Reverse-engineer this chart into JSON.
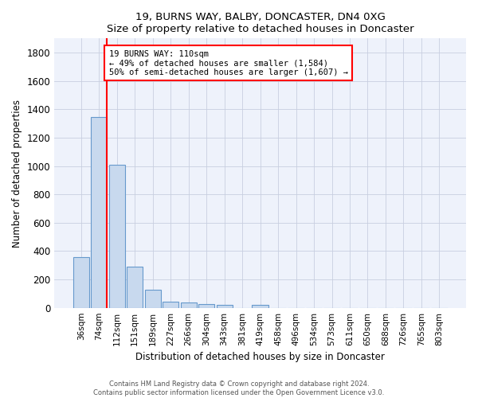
{
  "title": "19, BURNS WAY, BALBY, DONCASTER, DN4 0XG",
  "subtitle": "Size of property relative to detached houses in Doncaster",
  "xlabel": "Distribution of detached houses by size in Doncaster",
  "ylabel": "Number of detached properties",
  "bar_labels": [
    "36sqm",
    "74sqm",
    "112sqm",
    "151sqm",
    "189sqm",
    "227sqm",
    "266sqm",
    "304sqm",
    "343sqm",
    "381sqm",
    "419sqm",
    "458sqm",
    "496sqm",
    "534sqm",
    "573sqm",
    "611sqm",
    "650sqm",
    "688sqm",
    "726sqm",
    "765sqm",
    "803sqm"
  ],
  "bar_values": [
    355,
    1347,
    1010,
    290,
    125,
    42,
    35,
    25,
    20,
    0,
    20,
    0,
    0,
    0,
    0,
    0,
    0,
    0,
    0,
    0,
    0
  ],
  "bar_color": "#c8d9ee",
  "bar_edge_color": "#6699cc",
  "property_line_color": "red",
  "annotation_text": "19 BURNS WAY: 110sqm\n← 49% of detached houses are smaller (1,584)\n50% of semi-detached houses are larger (1,607) →",
  "ylim": [
    0,
    1900
  ],
  "yticks": [
    0,
    200,
    400,
    600,
    800,
    1000,
    1200,
    1400,
    1600,
    1800
  ],
  "background_color": "#eef2fb",
  "footer_line1": "Contains HM Land Registry data © Crown copyright and database right 2024.",
  "footer_line2": "Contains public sector information licensed under the Open Government Licence v3.0."
}
